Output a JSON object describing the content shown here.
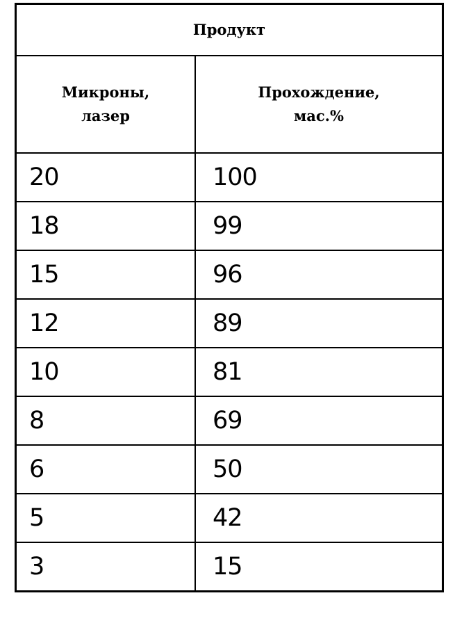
{
  "table": {
    "title": "Продукт",
    "columns": [
      "Микроны,\nлазер",
      "Прохождение,\nмас.%"
    ],
    "columns_lines": [
      [
        "Микроны,",
        "лазер"
      ],
      [
        "Прохождение,",
        "мас.%"
      ]
    ],
    "rows": [
      [
        "20",
        "100"
      ],
      [
        "18",
        "99"
      ],
      [
        "15",
        "96"
      ],
      [
        "12",
        "89"
      ],
      [
        "10",
        "81"
      ],
      [
        "8",
        "69"
      ],
      [
        "6",
        "50"
      ],
      [
        "5",
        "42"
      ],
      [
        "3",
        "15"
      ]
    ]
  }
}
